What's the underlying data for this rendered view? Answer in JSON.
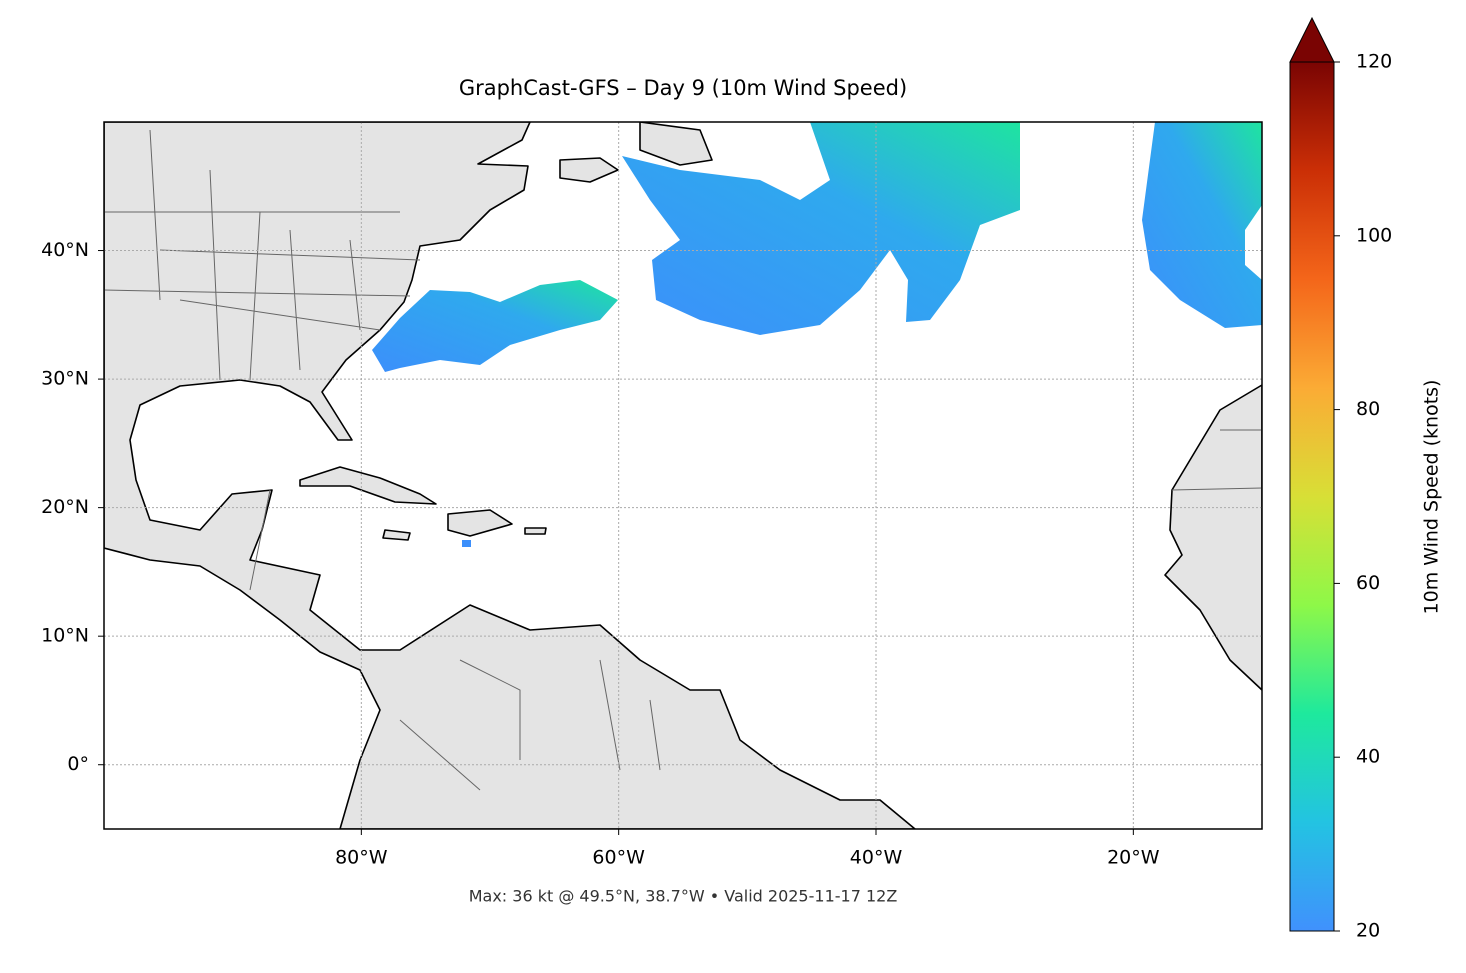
{
  "chart_data": {
    "type": "map",
    "title": "GraphCast-GFS – Day 9 (10m Wind Speed)",
    "note": "Max: 36 kt @ 49.5°N, 38.7°W • Valid 2025-11-17 12Z",
    "xlim": [
      -100,
      -10
    ],
    "ylim": [
      -5,
      50
    ],
    "xticks": [
      {
        "value": -80,
        "label": "80°W"
      },
      {
        "value": -60,
        "label": "60°W"
      },
      {
        "value": -40,
        "label": "40°W"
      },
      {
        "value": -20,
        "label": "20°W"
      }
    ],
    "yticks": [
      {
        "value": 0,
        "label": "0°"
      },
      {
        "value": 10,
        "label": "10°N"
      },
      {
        "value": 20,
        "label": "20°N"
      },
      {
        "value": 30,
        "label": "30°N"
      },
      {
        "value": 40,
        "label": "40°N"
      }
    ],
    "grid": true,
    "colorbar": {
      "label": "10m Wind Speed (knots)",
      "lim": [
        20,
        120
      ],
      "ticks": [
        20,
        40,
        60,
        80,
        100,
        120
      ],
      "colormap": [
        "#4091fd",
        "#23c3e2",
        "#1ee99d",
        "#8ef848",
        "#d8df36",
        "#fbab35",
        "#f4661a",
        "#cb2f06",
        "#7a0403"
      ]
    }
  }
}
